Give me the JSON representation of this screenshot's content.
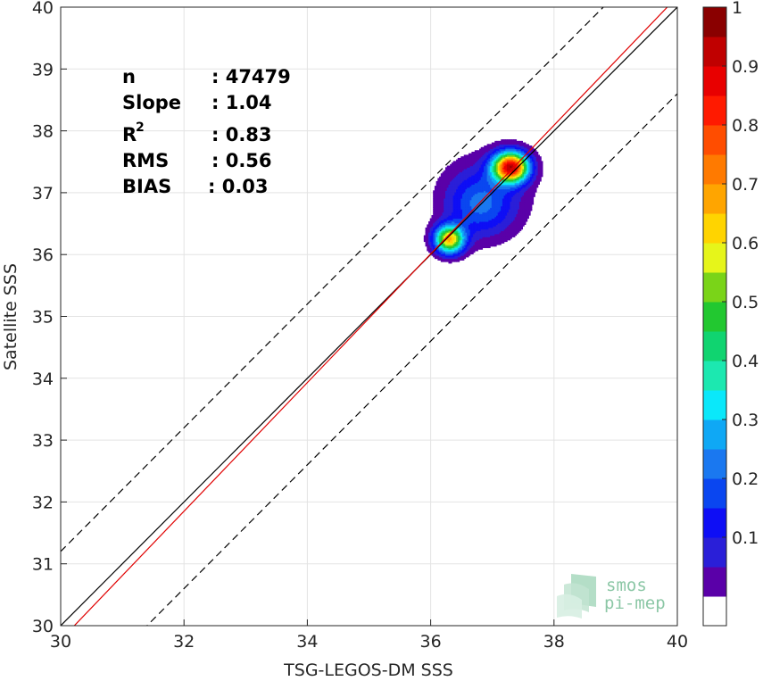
{
  "chart_data": {
    "type": "heatmap",
    "xlabel": "TSG-LEGOS-DM SSS",
    "ylabel": "Satellite SSS",
    "xlim": [
      30,
      40
    ],
    "ylim": [
      30,
      40
    ],
    "x_ticks": [
      30,
      32,
      34,
      36,
      38,
      40
    ],
    "y_ticks": [
      30,
      31,
      32,
      33,
      34,
      35,
      36,
      37,
      38,
      39,
      40
    ],
    "grid": true,
    "stats": {
      "n": {
        "label": "n",
        "value": ": 47479"
      },
      "slope": {
        "label": "Slope",
        "value": ": 1.04"
      },
      "r2": {
        "label": "R",
        "superscript": "2",
        "value": ": 0.83"
      },
      "rms": {
        "label": "RMS",
        "value": ": 0.56"
      },
      "bias": {
        "label": "BIAS",
        "value": ": 0.03"
      }
    },
    "lines": [
      {
        "name": "identity",
        "color": "#000000",
        "style": "solid",
        "slope": 1,
        "intercept": 0
      },
      {
        "name": "regression",
        "color": "#e00000",
        "style": "solid",
        "slope": 1.04,
        "intercept": -1.43
      },
      {
        "name": "upper bound",
        "color": "#000000",
        "style": "dashed",
        "slope": 1,
        "intercept": 1.2
      },
      {
        "name": "lower bound",
        "color": "#000000",
        "style": "dashed",
        "slope": 1,
        "intercept": -1.4
      }
    ],
    "density_peaks": [
      {
        "x": 37.3,
        "y": 37.42,
        "sx": 0.2,
        "sy": 0.17,
        "amp": 1.0
      },
      {
        "x": 36.3,
        "y": 36.25,
        "sx": 0.17,
        "sy": 0.16,
        "amp": 0.72
      },
      {
        "x": 36.8,
        "y": 36.8,
        "sx": 0.38,
        "sy": 0.36,
        "amp": 0.2
      },
      {
        "x": 36.9,
        "y": 37.0,
        "sx": 0.55,
        "sy": 0.5,
        "amp": 0.1
      }
    ],
    "colorbar": {
      "range": [
        0,
        1
      ],
      "ticks": [
        0.1,
        0.2,
        0.3,
        0.4,
        0.5,
        0.6,
        0.7,
        0.8,
        0.9,
        1
      ],
      "tick_labels": [
        "0.1",
        "0.2",
        "0.3",
        "0.4",
        "0.5",
        "0.6",
        "0.7",
        "0.8",
        "0.9",
        "1"
      ],
      "levels": 20,
      "colors": [
        "#ffffff",
        "#5a00a8",
        "#2a1fd8",
        "#0e0ef5",
        "#0a46f0",
        "#1a78f0",
        "#0fa8f5",
        "#0ae8fa",
        "#1ce8b0",
        "#10d470",
        "#22c830",
        "#7ad418",
        "#e6f51a",
        "#ffd400",
        "#ffa500",
        "#ff7a00",
        "#ff4d00",
        "#ff1a00",
        "#e80000",
        "#c00000",
        "#8a0000"
      ]
    }
  },
  "logo": {
    "line1": "smos",
    "line2": "pi-mep"
  }
}
